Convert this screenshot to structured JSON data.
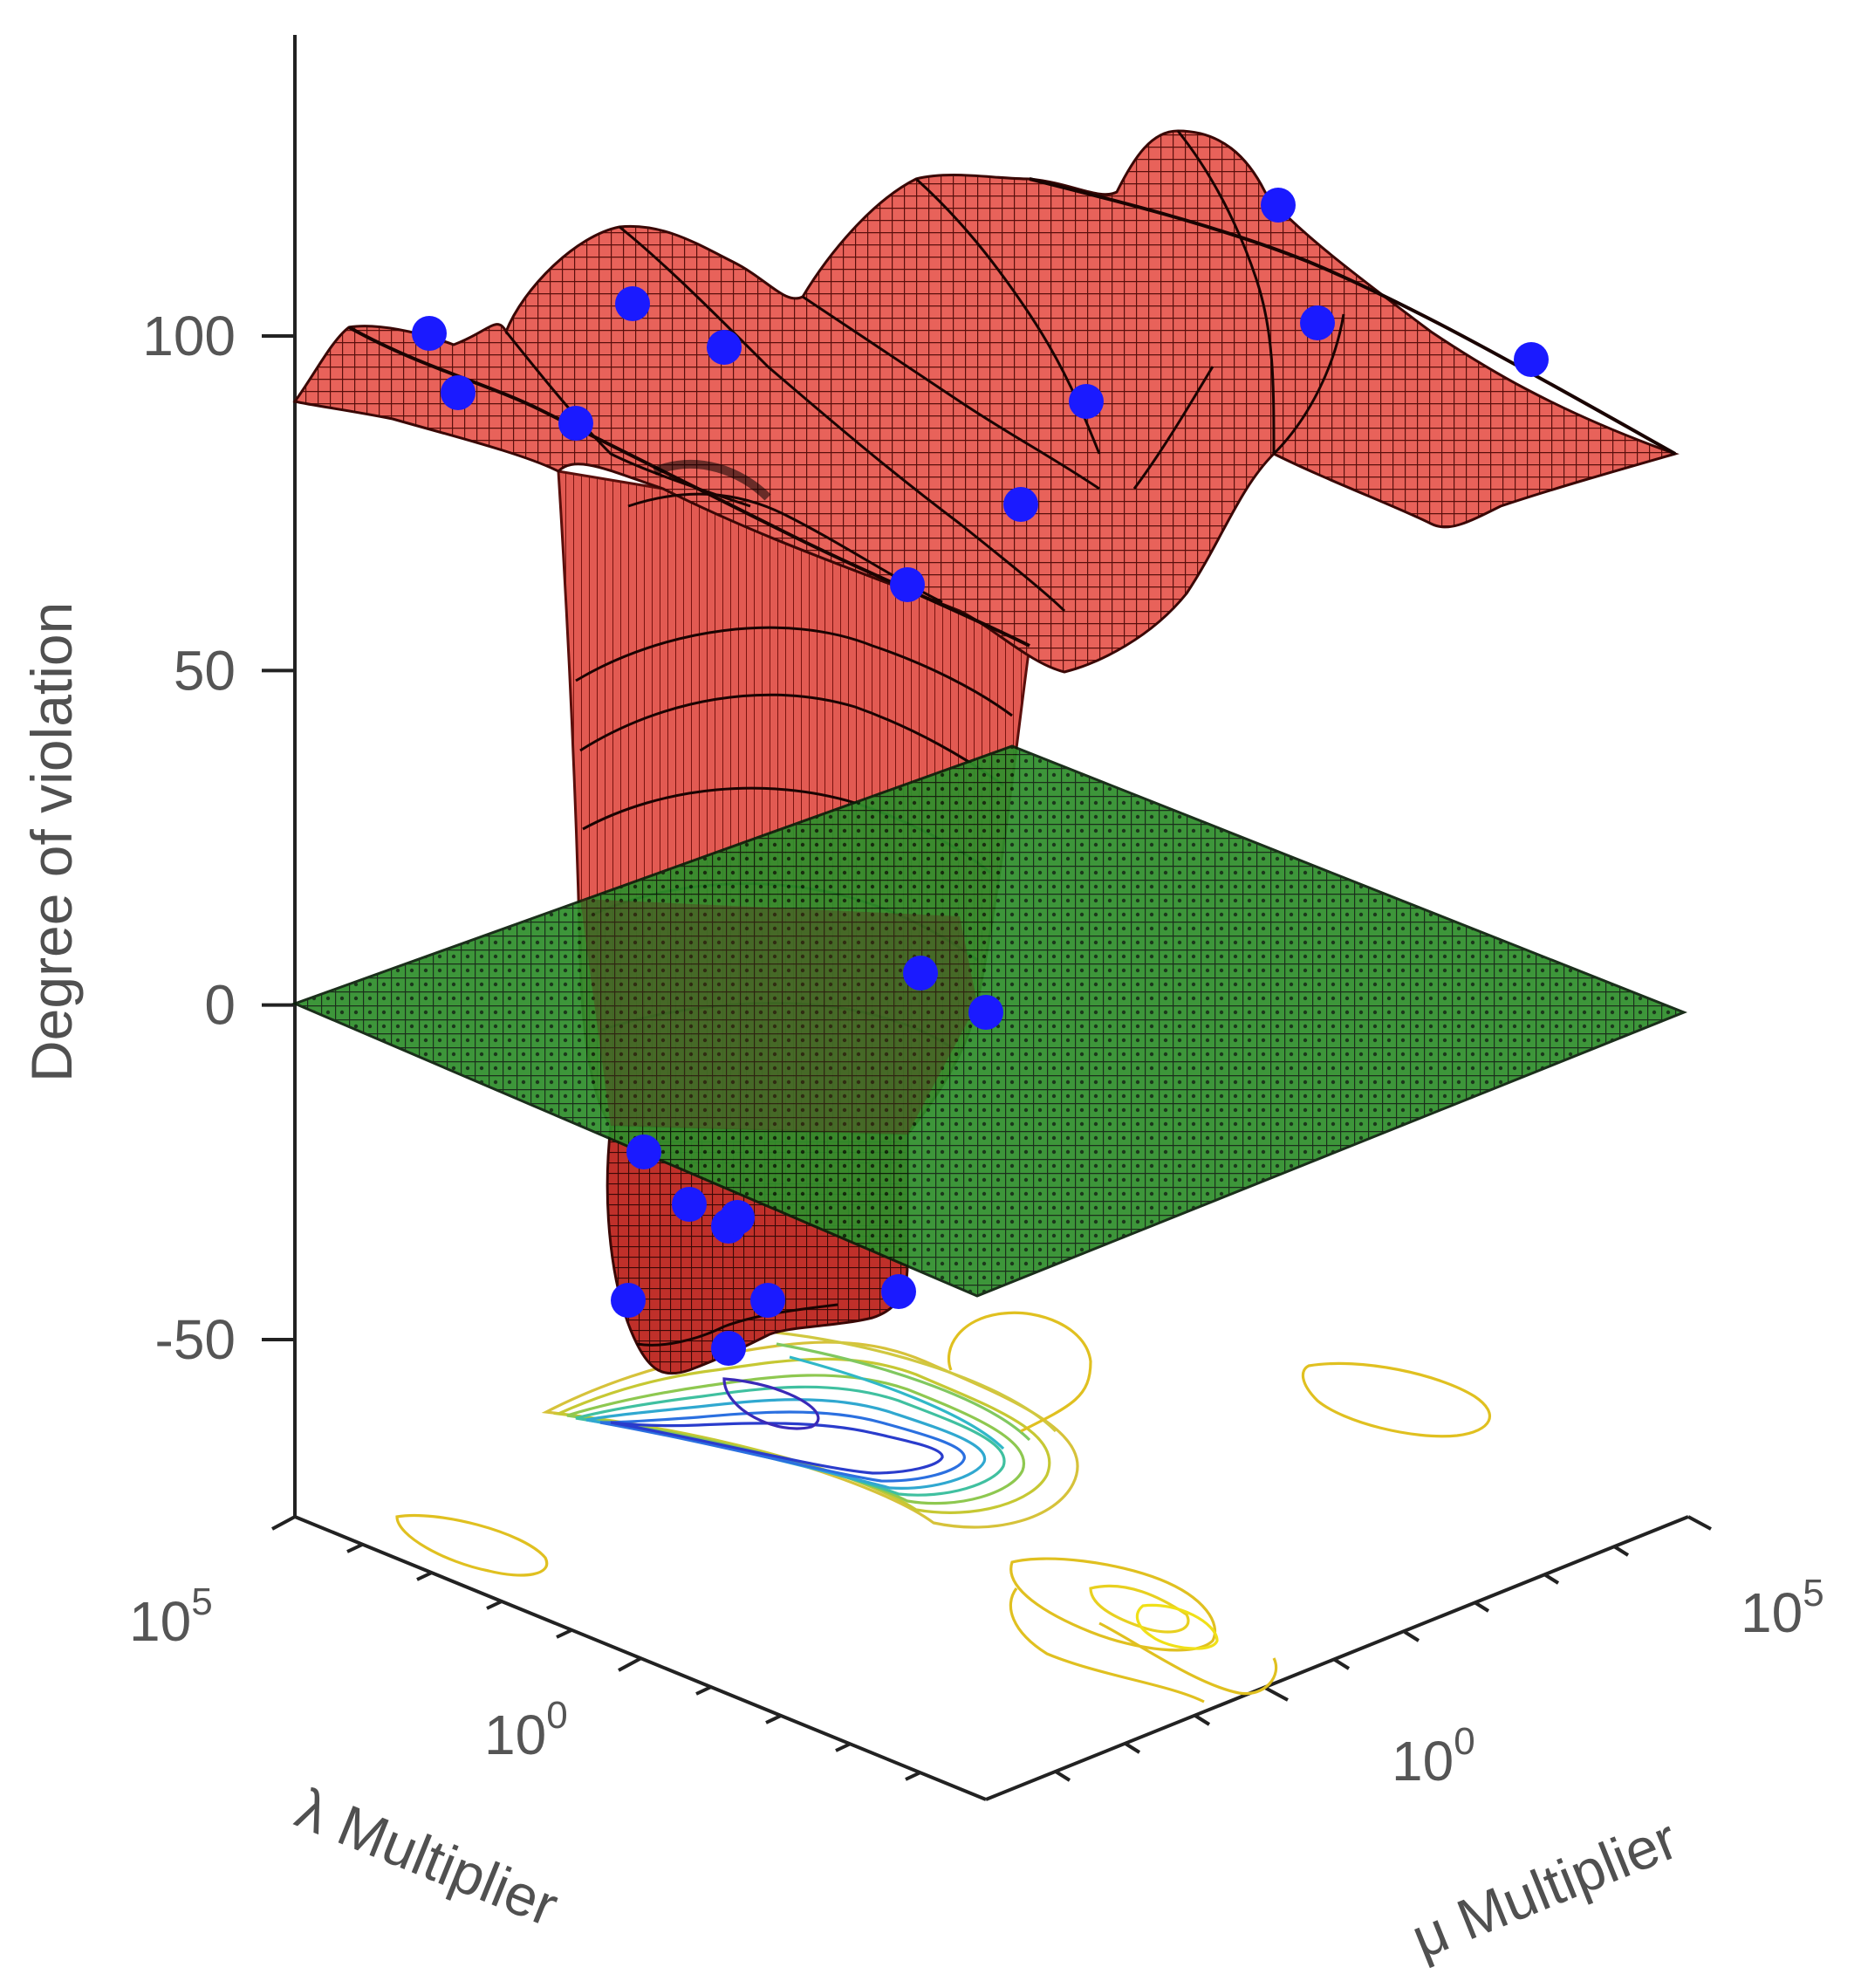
{
  "chart_data": {
    "type": "surface3d",
    "title": "",
    "zlabel": "Degree of violation",
    "xlabel": "λ Multiplier",
    "ylabel": "μ Multiplier",
    "z_ticks": [
      "100",
      "50",
      "0",
      "-50"
    ],
    "z_tick_values": [
      100,
      50,
      0,
      -50
    ],
    "zlim": [
      -70,
      140
    ],
    "lambda_ticks": [
      {
        "base": "10",
        "exp": "5",
        "value": 100000
      },
      {
        "base": "10",
        "exp": "0",
        "value": 1
      }
    ],
    "mu_ticks": [
      {
        "base": "10",
        "exp": "5",
        "value": 100000
      },
      {
        "base": "10",
        "exp": "0",
        "value": 1
      }
    ],
    "x_scale": "log",
    "y_scale": "log",
    "zero_plane": {
      "z": 0,
      "color": "#1f8f1f"
    },
    "surface_color": "#d9372e",
    "marker_color": "#1a1aff",
    "contour_colors": [
      "#e0c020",
      "#b8c830",
      "#40c8a0",
      "#30b0d0",
      "#3050e0",
      "#2020c0"
    ],
    "grid": false,
    "legend": "none"
  }
}
